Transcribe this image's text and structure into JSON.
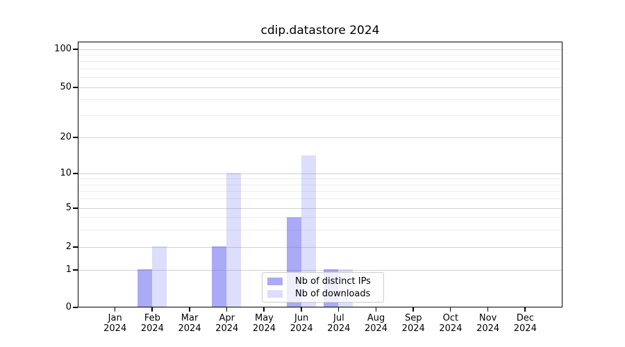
{
  "chart_data": {
    "type": "bar",
    "title": "cdip.datastore 2024",
    "months": [
      "Jan",
      "Feb",
      "Mar",
      "Apr",
      "May",
      "Jun",
      "Jul",
      "Aug",
      "Sep",
      "Oct",
      "Nov",
      "Dec"
    ],
    "year": "2024",
    "x_categories": [
      "Jan 2024",
      "Feb 2024",
      "Mar 2024",
      "Apr 2024",
      "May 2024",
      "Jun 2024",
      "Jul 2024",
      "Aug 2024",
      "Sep 2024",
      "Oct 2024",
      "Nov 2024",
      "Dec 2024"
    ],
    "series": [
      {
        "name": "Nb of distinct IPs",
        "color_rgba": "rgba(85,85,238,0.5)",
        "color_hex": "#aaaaf7",
        "values": [
          0,
          1,
          0,
          2,
          0,
          4,
          1,
          0,
          0,
          0,
          0,
          0
        ]
      },
      {
        "name": "Nb of downloads",
        "color_rgba": "rgba(85,85,238,0.2)",
        "color_hex": "#dcdcfa",
        "values": [
          0,
          2,
          0,
          10,
          0,
          14,
          1,
          0,
          0,
          0,
          0,
          0
        ]
      }
    ],
    "yscale": "symlog",
    "ylim": [
      0,
      115
    ],
    "y_major_ticks": [
      0,
      1,
      2,
      5,
      10,
      20,
      50,
      100
    ],
    "y_minor_ticks": [
      3,
      4,
      6,
      7,
      8,
      9,
      30,
      40,
      60,
      70,
      80,
      90
    ],
    "grid": true,
    "legend": {
      "visible": true,
      "position": "lower center inside"
    }
  },
  "colors": {
    "grid_major": "#d2d2d2",
    "grid_minor": "#ececec",
    "spine": "#000000",
    "legend_border": "#cccccc"
  }
}
